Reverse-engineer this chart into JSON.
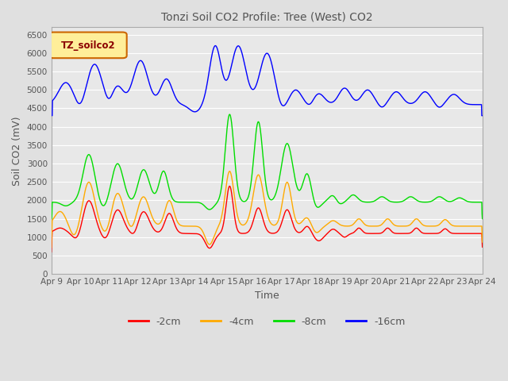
{
  "title": "Tonzi Soil CO2 Profile: Tree (West) CO2",
  "xlabel": "Time",
  "ylabel": "Soil CO2 (mV)",
  "ylim": [
    0,
    6700
  ],
  "yticks": [
    0,
    500,
    1000,
    1500,
    2000,
    2500,
    3000,
    3500,
    4000,
    4500,
    5000,
    5500,
    6000,
    6500
  ],
  "legend_label": "TZ_soilco2",
  "legend_box_color": "#ffee99",
  "legend_box_edge": "#cc6600",
  "series_labels": [
    "-2cm",
    "-4cm",
    "-8cm",
    "-16cm"
  ],
  "series_colors": [
    "#ff0000",
    "#ffaa00",
    "#00dd00",
    "#0000ff"
  ],
  "x_tick_labels": [
    "Apr 9",
    "Apr 10",
    "Apr 11",
    "Apr 12",
    "Apr 13",
    "Apr 14",
    "Apr 15",
    "Apr 16",
    "Apr 17",
    "Apr 18",
    "Apr 19",
    "Apr 20",
    "Apr 21",
    "Apr 22",
    "Apr 23",
    "Apr 24"
  ],
  "background_color": "#e8e8e8",
  "grid_color": "#ffffff",
  "title_color": "#555555",
  "axis_label_color": "#555555",
  "tick_label_color": "#555555"
}
